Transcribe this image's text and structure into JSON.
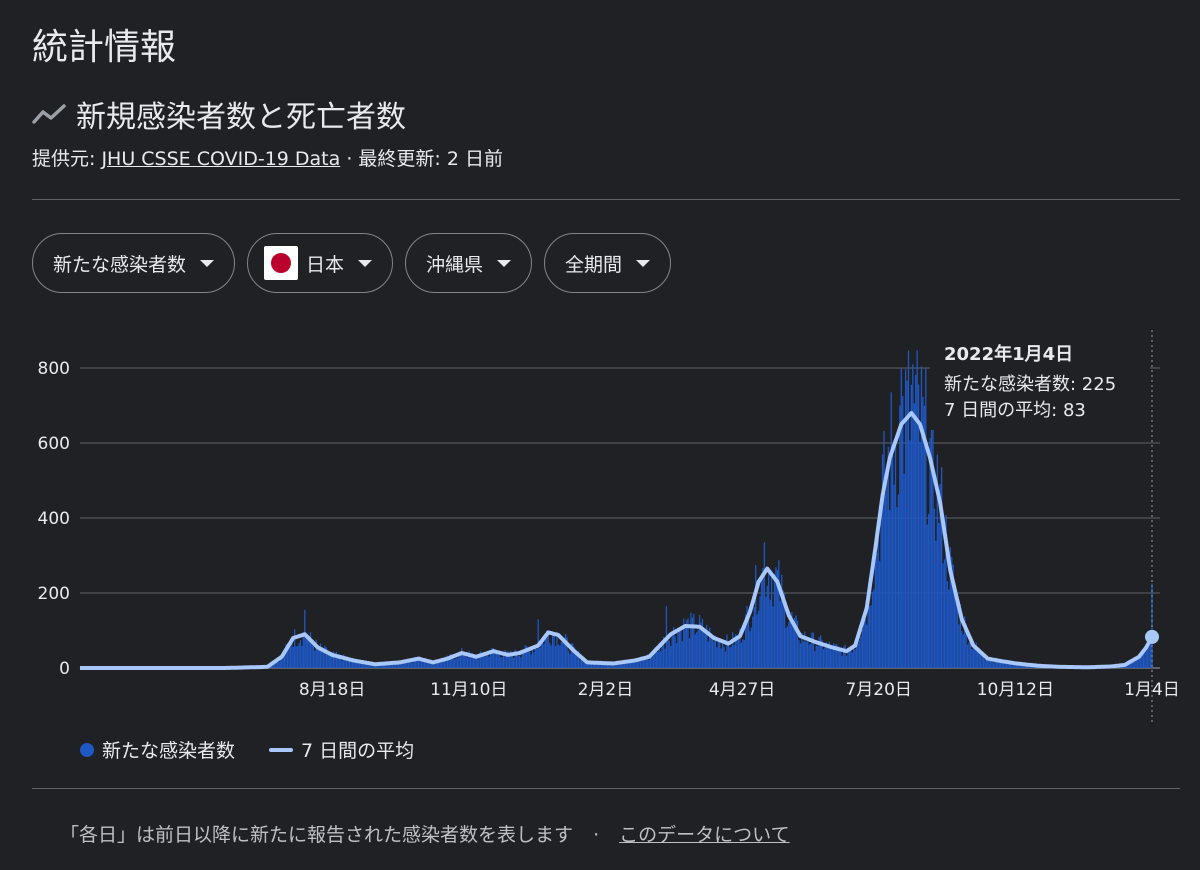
{
  "page": {
    "title": "統計情報",
    "section_title": "新規感染者数と死亡者数",
    "source_label": "提供元:",
    "source_link": "JHU CSSE COVID-19 Data",
    "updated": " · 最終更新: 2 日前"
  },
  "filters": {
    "metric": "新たな感染者数",
    "country": "日本",
    "region": "沖縄県",
    "period": "全期間"
  },
  "tooltip": {
    "date": "2022年1月4日",
    "cases_line": "新たな感染者数: 225",
    "avg_line": "7 日間の平均: 83"
  },
  "legend": {
    "cases": "新たな感染者数",
    "avg": "7 日間の平均"
  },
  "footer": {
    "note": "「各日」は前日以降に新たに報告された感染者数を表します",
    "separator": "·",
    "link": "このデータについて"
  },
  "colors": {
    "bars": "#1f57c3",
    "avg_line": "#a8c7fa",
    "grid": "#5f6368",
    "background": "#202124"
  },
  "chart_data": {
    "type": "bar",
    "title": "",
    "ylim": [
      0,
      800
    ],
    "yticks": [
      0,
      200,
      400,
      600,
      800
    ],
    "xtick_labels": [
      "8月18日",
      "11月10日",
      "2月2日",
      "4月27日",
      "7月20日",
      "10月12日",
      "1月4日"
    ],
    "xtick_day_index": [
      155,
      239,
      323,
      407,
      491,
      575,
      659
    ],
    "avg_keypoints": [
      [
        0,
        0
      ],
      [
        60,
        0
      ],
      [
        100,
        0
      ],
      [
        130,
        3
      ],
      [
        140,
        30
      ],
      [
        148,
        80
      ],
      [
        156,
        90
      ],
      [
        165,
        55
      ],
      [
        175,
        35
      ],
      [
        190,
        20
      ],
      [
        205,
        10
      ],
      [
        222,
        15
      ],
      [
        235,
        25
      ],
      [
        245,
        15
      ],
      [
        255,
        25
      ],
      [
        265,
        40
      ],
      [
        275,
        30
      ],
      [
        287,
        45
      ],
      [
        297,
        35
      ],
      [
        305,
        40
      ],
      [
        318,
        60
      ],
      [
        325,
        95
      ],
      [
        332,
        88
      ],
      [
        343,
        45
      ],
      [
        352,
        15
      ],
      [
        370,
        12
      ],
      [
        385,
        20
      ],
      [
        395,
        30
      ],
      [
        410,
        90
      ],
      [
        420,
        112
      ],
      [
        430,
        110
      ],
      [
        440,
        80
      ],
      [
        450,
        65
      ],
      [
        458,
        85
      ],
      [
        465,
        150
      ],
      [
        471,
        230
      ],
      [
        477,
        265
      ],
      [
        484,
        230
      ],
      [
        492,
        140
      ],
      [
        500,
        85
      ],
      [
        510,
        70
      ],
      [
        522,
        55
      ],
      [
        532,
        45
      ],
      [
        538,
        60
      ],
      [
        546,
        160
      ],
      [
        552,
        320
      ],
      [
        557,
        460
      ],
      [
        562,
        560
      ],
      [
        570,
        650
      ],
      [
        577,
        680
      ],
      [
        583,
        650
      ],
      [
        590,
        560
      ],
      [
        597,
        440
      ],
      [
        604,
        260
      ],
      [
        612,
        130
      ],
      [
        620,
        60
      ],
      [
        630,
        25
      ],
      [
        640,
        18
      ],
      [
        650,
        12
      ],
      [
        665,
        6
      ],
      [
        680,
        3
      ],
      [
        700,
        2
      ],
      [
        715,
        4
      ],
      [
        725,
        8
      ],
      [
        735,
        30
      ],
      [
        740,
        55
      ],
      [
        744,
        83
      ]
    ],
    "daily_peaks": [
      [
        156,
        155
      ],
      [
        233,
        30
      ],
      [
        318,
        130
      ],
      [
        407,
        165
      ],
      [
        475,
        335
      ],
      [
        570,
        800
      ],
      [
        578,
        810
      ],
      [
        744,
        225
      ]
    ],
    "series": [
      {
        "name": "新たな感染者数",
        "type": "bar",
        "last_value": 225
      },
      {
        "name": "7 日間の平均",
        "type": "line",
        "last_value": 83
      }
    ]
  }
}
